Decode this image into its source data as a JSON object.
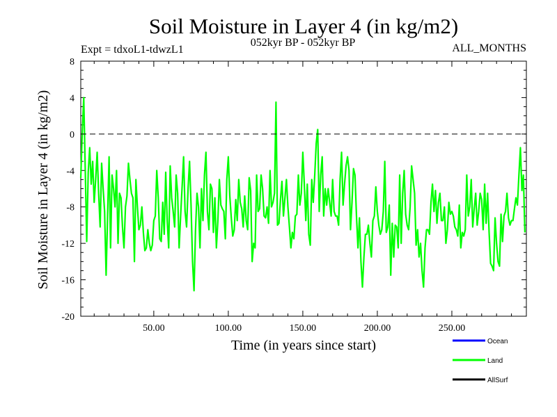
{
  "chart_data": {
    "type": "line",
    "title": "Soil Moisture in Layer 4 (in kg/m2)",
    "subtitle_left": "Expt = tdxoL1-tdwzL1",
    "subtitle_center": "052kyr BP - 052kyr BP",
    "subtitle_right": "ALL_MONTHS",
    "xlabel": "Time (in years since start)",
    "ylabel": "Soil Moisture in Layer 4 (in kg/m2)",
    "xlim": [
      1,
      300
    ],
    "ylim": [
      -20,
      8
    ],
    "x_ticks": [
      50,
      100,
      150,
      200,
      250
    ],
    "x_tick_labels": [
      "50.00",
      "100.00",
      "150.00",
      "200.00",
      "250.00"
    ],
    "y_ticks": [
      -20,
      -16,
      -12,
      -8,
      -4,
      0,
      4,
      8
    ],
    "y_tick_labels": [
      "-20",
      "-16",
      "-12",
      "-8",
      "-4",
      "0",
      "4",
      "8"
    ],
    "reference_line": 0,
    "legend": [
      {
        "name": "Ocean",
        "color": "#0000ff"
      },
      {
        "name": "Land",
        "color": "#00ff00"
      },
      {
        "name": "AllSurf",
        "color": "#000000"
      }
    ],
    "series": [
      {
        "name": "Land",
        "color": "#00ff00",
        "x_start": 1,
        "x_step": 1,
        "values": [
          -4.8,
          0.2,
          4.0,
          -3.8,
          -11.8,
          -4.2,
          -1.5,
          -5.5,
          -3.0,
          -7.5,
          -5.0,
          -2.0,
          -6.5,
          -10.2,
          -3.2,
          -6.0,
          -8.5,
          -15.5,
          -9.0,
          -2.5,
          -12.5,
          -4.5,
          -6.0,
          -8.0,
          -4.0,
          -12.0,
          -6.5,
          -7.0,
          -10.2,
          -12.5,
          -8.0,
          -6.8,
          -3.2,
          -5.0,
          -6.5,
          -7.0,
          -14.0,
          -5.0,
          -8.0,
          -10.5,
          -10.0,
          -8.0,
          -10.8,
          -12.8,
          -12.5,
          -10.5,
          -12.0,
          -12.8,
          -12.2,
          -9.5,
          -9.0,
          -4.0,
          -7.0,
          -11.5,
          -11.8,
          -7.5,
          -11.0,
          -4.2,
          -9.5,
          -12.5,
          -3.5,
          -7.0,
          -8.5,
          -10.2,
          -4.5,
          -6.5,
          -12.5,
          -9.0,
          -5.8,
          -2.5,
          -8.5,
          -10.2,
          -6.0,
          -3.0,
          -7.8,
          -14.0,
          -17.2,
          -10.5,
          -6.5,
          -8.0,
          -12.5,
          -6.0,
          -9.5,
          -4.5,
          -2.0,
          -8.5,
          -10.5,
          -5.5,
          -6.0,
          -10.8,
          -7.0,
          -12.5,
          -9.5,
          -5.0,
          -7.8,
          -8.2,
          -8.5,
          -11.5,
          -5.0,
          -2.5,
          -6.8,
          -9.2,
          -11.2,
          -10.5,
          -7.2,
          -9.5,
          -5.0,
          -7.5,
          -8.2,
          -10.2,
          -6.8,
          -9.5,
          -10.5,
          -4.8,
          -6.2,
          -14.0,
          -12.0,
          -12.5,
          -4.5,
          -8.5,
          -8.2,
          -4.5,
          -6.0,
          -9.0,
          -9.2,
          -8.0,
          -9.8,
          -4.0,
          -8.0,
          -7.5,
          -6.5,
          3.5,
          -10.0,
          -9.8,
          -7.2,
          -5.2,
          -9.0,
          -7.0,
          -5.0,
          -8.0,
          -10.2,
          -12.5,
          -10.8,
          -11.5,
          -9.0,
          -8.8,
          -4.5,
          -7.8,
          -6.5,
          -2.0,
          -5.5,
          -9.5,
          -5.5,
          -11.0,
          -12.2,
          -5.0,
          -7.5,
          -4.5,
          -1.0,
          0.5,
          -8.5,
          -4.5,
          -2.5,
          -9.0,
          -6.0,
          -7.8,
          -6.0,
          -7.5,
          -9.0,
          -5.0,
          -8.5,
          -9.0,
          -9.0,
          -10.0,
          -5.0,
          -2.0,
          -7.8,
          -5.5,
          -3.5,
          -2.5,
          -4.0,
          -10.5,
          -7.5,
          -3.8,
          -4.5,
          -9.0,
          -12.5,
          -9.2,
          -14.0,
          -16.8,
          -13.5,
          -11.0,
          -11.0,
          -10.0,
          -12.0,
          -13.5,
          -9.5,
          -9.0,
          -5.8,
          -8.5,
          -10.0,
          -11.0,
          -10.5,
          -8.5,
          -3.0,
          -10.8,
          -10.2,
          -7.8,
          -15.5,
          -9.8,
          -13.5,
          -10.0,
          -10.2,
          -12.5,
          -4.5,
          -12.0,
          -6.5,
          -4.0,
          -8.8,
          -10.0,
          -10.5,
          -8.0,
          -3.5,
          -5.0,
          -6.5,
          -12.2,
          -10.5,
          -13.5,
          -12.0,
          -15.0,
          -16.8,
          -12.5,
          -10.5,
          -10.5,
          -11.0,
          -7.5,
          -5.5,
          -8.5,
          -6.2,
          -9.8,
          -7.5,
          -6.5,
          -9.5,
          -9.5,
          -8.0,
          -12.0,
          -10.5,
          -7.5,
          -8.8,
          -8.5,
          -9.0,
          -10.2,
          -10.5,
          -11.2,
          -7.8,
          -12.5,
          -10.8,
          -11.2,
          -10.5,
          -4.5,
          -9.0,
          -8.0,
          -5.0,
          -10.2,
          -8.2,
          -6.5,
          -10.0,
          -8.5,
          -6.5,
          -7.2,
          -10.5,
          -5.5,
          -9.8,
          -6.5,
          -10.8,
          -14.2,
          -14.5,
          -15.0,
          -9.2,
          -12.0,
          -14.0,
          -14.5,
          -8.8,
          -11.8,
          -9.0,
          -8.5,
          -6.5,
          -9.2,
          -10.0,
          -9.5,
          -9.5,
          -8.2,
          -7.0,
          -7.8,
          -4.5,
          -1.5,
          -6.2,
          -4.5,
          -10.8
        ]
      }
    ]
  }
}
